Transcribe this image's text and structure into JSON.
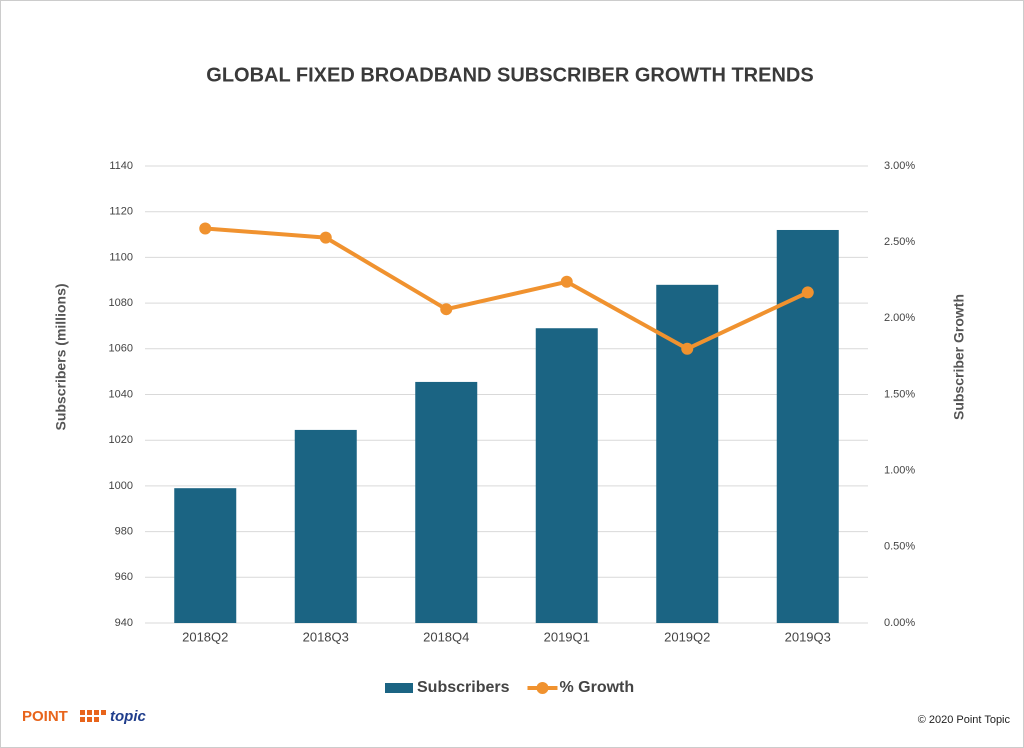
{
  "chart_data": {
    "type": "bar",
    "title": "GLOBAL FIXED BROADBAND SUBSCRIBER GROWTH TRENDS",
    "y_label": "Subscribers (millions)",
    "y2_label": "Subscriber Growth",
    "categories": [
      "2018Q2",
      "2018Q3",
      "2018Q4",
      "2019Q1",
      "2019Q2",
      "2019Q3"
    ],
    "series": [
      {
        "name": "Subscribers",
        "type": "bar",
        "color": "#1b6483",
        "values": [
          999,
          1024.5,
          1045.5,
          1069,
          1088,
          1112
        ]
      },
      {
        "name": "% Growth",
        "type": "line",
        "axis": "y2",
        "color": "#f0922f",
        "values": [
          2.59,
          2.53,
          2.06,
          2.24,
          1.8,
          2.17
        ]
      }
    ],
    "ylim": [
      940,
      1140
    ],
    "yticks": [
      940,
      960,
      980,
      1000,
      1020,
      1040,
      1060,
      1080,
      1100,
      1120,
      1140
    ],
    "y2lim": [
      0,
      3
    ],
    "y2ticks": [
      {
        "value": 0,
        "label": "0.00%"
      },
      {
        "value": 0.5,
        "label": "0.50%"
      },
      {
        "value": 1,
        "label": "1.00%"
      },
      {
        "value": 1.5,
        "label": "1.50%"
      },
      {
        "value": 2,
        "label": "2.00%"
      },
      {
        "value": 2.5,
        "label": "2.50%"
      },
      {
        "value": 3,
        "label": "3.00%"
      }
    ],
    "grid": true,
    "legend": "bottom"
  },
  "footer": {
    "logo_left": "POINT",
    "logo_right": "topic",
    "copyright": "© 2020 Point Topic"
  }
}
